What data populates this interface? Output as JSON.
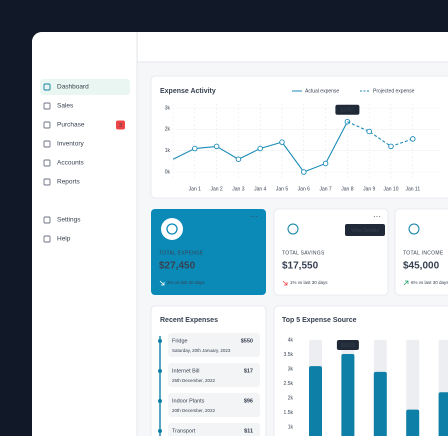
{
  "sidebar": {
    "items": [
      {
        "label": "Dashboard"
      },
      {
        "label": "Sales"
      },
      {
        "label": "Purchase",
        "badge": 3
      },
      {
        "label": "Inventory"
      },
      {
        "label": "Accounts"
      },
      {
        "label": "Reports"
      }
    ],
    "bottom_items": [
      {
        "label": "Settings"
      },
      {
        "label": "Help"
      }
    ]
  },
  "chart_data": [
    {
      "type": "line",
      "title": "Expense Activity",
      "categories": [
        null,
        "Jan 1",
        "Jan 2",
        "Jan 3",
        "Jan 4",
        "Jan 5",
        "Jan 6",
        "Jan 7",
        "Jan 8",
        "Jan 9",
        "Jan 10",
        "Jan 11"
      ],
      "series": [
        {
          "name": "Actual expense",
          "color": "#1a8bb5",
          "values": [
            600,
            1100,
            1200,
            600,
            1100,
            1400,
            0,
            400,
            2357,
            null,
            null,
            null
          ],
          "value_labels": [
            null,
            null,
            null,
            null,
            null,
            null,
            null,
            null,
            "$2357",
            null,
            null,
            null
          ]
        },
        {
          "name": "Projected expense",
          "color": "#1a8bb5",
          "dashed": true,
          "values": [
            null,
            null,
            null,
            null,
            null,
            null,
            null,
            null,
            2357,
            1900,
            1200,
            1550
          ]
        }
      ],
      "ylim": [
        0,
        3000
      ],
      "yticks": [
        {
          "value": 0,
          "label": "0k"
        },
        {
          "value": 1000,
          "label": "1k"
        },
        {
          "value": 2000,
          "label": "2k"
        },
        {
          "value": 3000,
          "label": "3k"
        }
      ],
      "grid": true
    },
    {
      "type": "bar",
      "title": "Top 5 Expense Source",
      "categories": [
        null,
        null,
        null,
        null,
        null
      ],
      "values": [
        3100,
        3519,
        2900,
        1600,
        2200
      ],
      "value_labels": [
        null,
        "$3519",
        null,
        null,
        null
      ],
      "color": "#0e7fa6",
      "ylim": [
        0,
        4000
      ],
      "yticks": [
        {
          "value": 1000,
          "label": "1k"
        },
        {
          "value": 1500,
          "label": "1.5k"
        },
        {
          "value": 2000,
          "label": "2k"
        },
        {
          "value": 2500,
          "label": "2.5k"
        },
        {
          "value": 3000,
          "label": "3k"
        },
        {
          "value": 3500,
          "label": "3.5k"
        },
        {
          "value": 4000,
          "label": "4k"
        }
      ]
    }
  ],
  "stat_cards": [
    {
      "label": "TOTAL EXPENSE",
      "value": "$27,450",
      "change": "2% vs last 30 days"
    },
    {
      "label": "TOTAL SAVINGS",
      "value": "$17,550",
      "change": "1% vs last 30 days"
    },
    {
      "label": "TOTAL INCOME",
      "value": "$45,000",
      "change": "6% vs last 30 days"
    }
  ],
  "card_tooltip": "View Details",
  "recent_expenses": {
    "title": "Recent Expenses",
    "items": [
      {
        "name": "Fridge",
        "amount": "$550",
        "date": "Saturday, 20th January, 2023"
      },
      {
        "name": "Internet Bill",
        "amount": "$17",
        "date": "25th December, 2022"
      },
      {
        "name": "Indoor Plants",
        "amount": "$96",
        "date": "20th December, 2022"
      },
      {
        "name": "Transport",
        "amount": "$11"
      }
    ]
  }
}
